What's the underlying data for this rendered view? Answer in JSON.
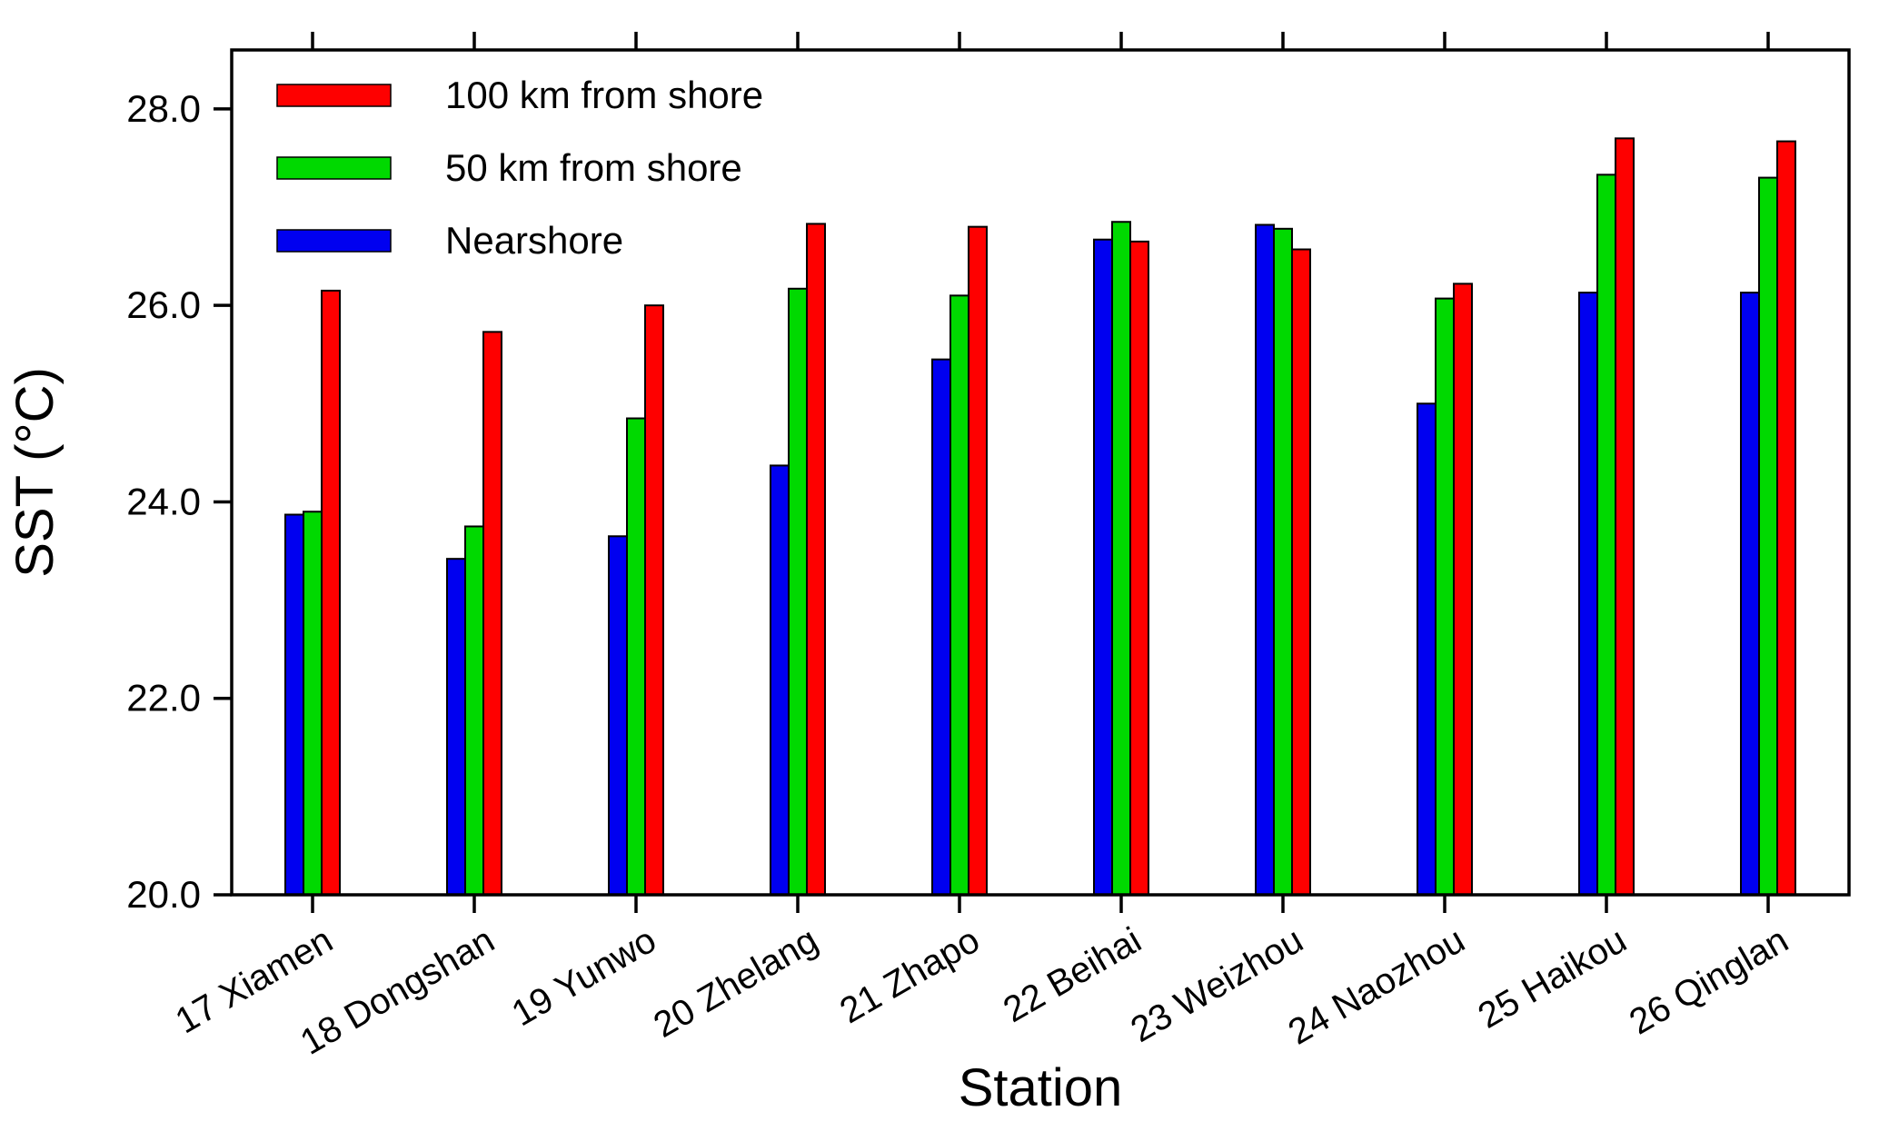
{
  "chart_data": {
    "type": "bar",
    "title": "",
    "xlabel": "Station",
    "ylabel": "SST (°C)",
    "ylim": [
      20.0,
      28.6
    ],
    "yticks": [
      20.0,
      22.0,
      24.0,
      26.0,
      28.0
    ],
    "ytick_labels": [
      "20.0",
      "22.0",
      "24.0",
      "26.0",
      "28.0"
    ],
    "grid": false,
    "background": "#ffffff",
    "frame_color": "#000000",
    "categories": [
      "17 Xiamen",
      "18 Dongshan",
      "19 Yunwo",
      "20 Zhelang",
      "21 Zhapo",
      "22 Beihai",
      "23 Weizhou",
      "24 Naozhou",
      "25 Haikou",
      "26 Qinglan"
    ],
    "series": [
      {
        "name": "Nearshore",
        "color": "#0000f0",
        "values": [
          23.87,
          23.42,
          23.65,
          24.37,
          25.45,
          26.67,
          26.82,
          25.0,
          26.13,
          26.13
        ]
      },
      {
        "name": "50 km from shore",
        "color": "#00d900",
        "values": [
          23.9,
          23.75,
          24.85,
          26.17,
          26.1,
          26.85,
          26.78,
          26.07,
          27.33,
          27.3
        ]
      },
      {
        "name": "100 km from shore",
        "color": "#fe0000",
        "values": [
          26.15,
          25.73,
          26.0,
          26.83,
          26.8,
          26.65,
          26.57,
          26.22,
          27.7,
          27.67
        ]
      }
    ],
    "legend": {
      "position": "top-left",
      "display_order": [
        2,
        1,
        0
      ]
    }
  }
}
